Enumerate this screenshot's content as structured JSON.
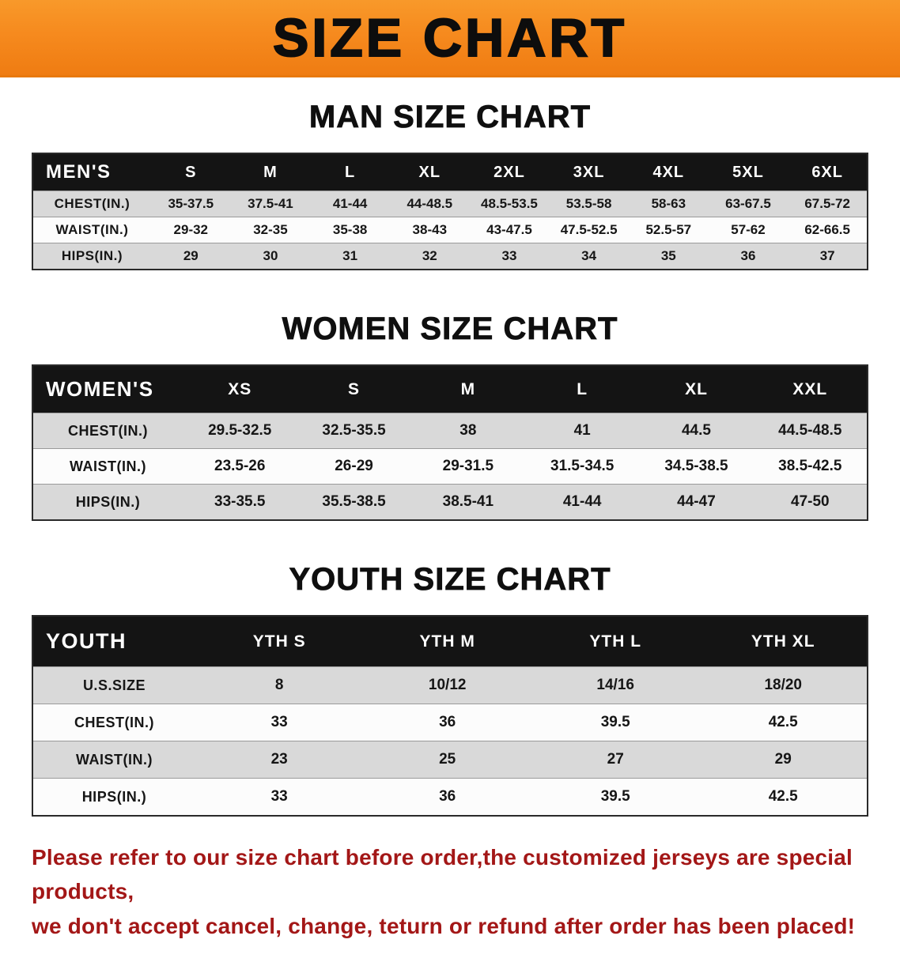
{
  "banner": {
    "title": "SIZE CHART"
  },
  "sections": [
    {
      "id": "men",
      "heading": "MAN SIZE CHART",
      "table": {
        "header": [
          "MEN'S",
          "S",
          "M",
          "L",
          "XL",
          "2XL",
          "3XL",
          "4XL",
          "5XL",
          "6XL"
        ],
        "rows": [
          [
            "CHEST(IN.)",
            "35-37.5",
            "37.5-41",
            "41-44",
            "44-48.5",
            "48.5-53.5",
            "53.5-58",
            "58-63",
            "63-67.5",
            "67.5-72"
          ],
          [
            "WAIST(IN.)",
            "29-32",
            "32-35",
            "35-38",
            "38-43",
            "43-47.5",
            "47.5-52.5",
            "52.5-57",
            "57-62",
            "62-66.5"
          ],
          [
            "HIPS(IN.)",
            "29",
            "30",
            "31",
            "32",
            "33",
            "34",
            "35",
            "36",
            "37"
          ]
        ]
      }
    },
    {
      "id": "women",
      "heading": "WOMEN SIZE CHART",
      "table": {
        "header": [
          "WOMEN'S",
          "XS",
          "S",
          "M",
          "L",
          "XL",
          "XXL"
        ],
        "rows": [
          [
            "CHEST(IN.)",
            "29.5-32.5",
            "32.5-35.5",
            "38",
            "41",
            "44.5",
            "44.5-48.5"
          ],
          [
            "WAIST(IN.)",
            "23.5-26",
            "26-29",
            "29-31.5",
            "31.5-34.5",
            "34.5-38.5",
            "38.5-42.5"
          ],
          [
            "HIPS(IN.)",
            "33-35.5",
            "35.5-38.5",
            "38.5-41",
            "41-44",
            "44-47",
            "47-50"
          ]
        ]
      }
    },
    {
      "id": "youth",
      "heading": "YOUTH SIZE CHART",
      "table": {
        "header": [
          "YOUTH",
          "YTH S",
          "YTH M",
          "YTH L",
          "YTH XL"
        ],
        "rows": [
          [
            "U.S.SIZE",
            "8",
            "10/12",
            "14/16",
            "18/20"
          ],
          [
            "CHEST(IN.)",
            "33",
            "36",
            "39.5",
            "42.5"
          ],
          [
            "WAIST(IN.)",
            "23",
            "25",
            "27",
            "29"
          ],
          [
            "HIPS(IN.)",
            "33",
            "36",
            "39.5",
            "42.5"
          ]
        ]
      }
    }
  ],
  "disclaimer": {
    "line1": "Please refer to our size chart before order,the customized jerseys are special products,",
    "line2": "we don't accept cancel, change, teturn or refund after order has been placed!"
  },
  "colors": {
    "banner_orange": "#f68a1e",
    "table_header_black": "#141414",
    "stripe_gray": "#d9d9d9",
    "disclaimer_red": "#a31717"
  }
}
